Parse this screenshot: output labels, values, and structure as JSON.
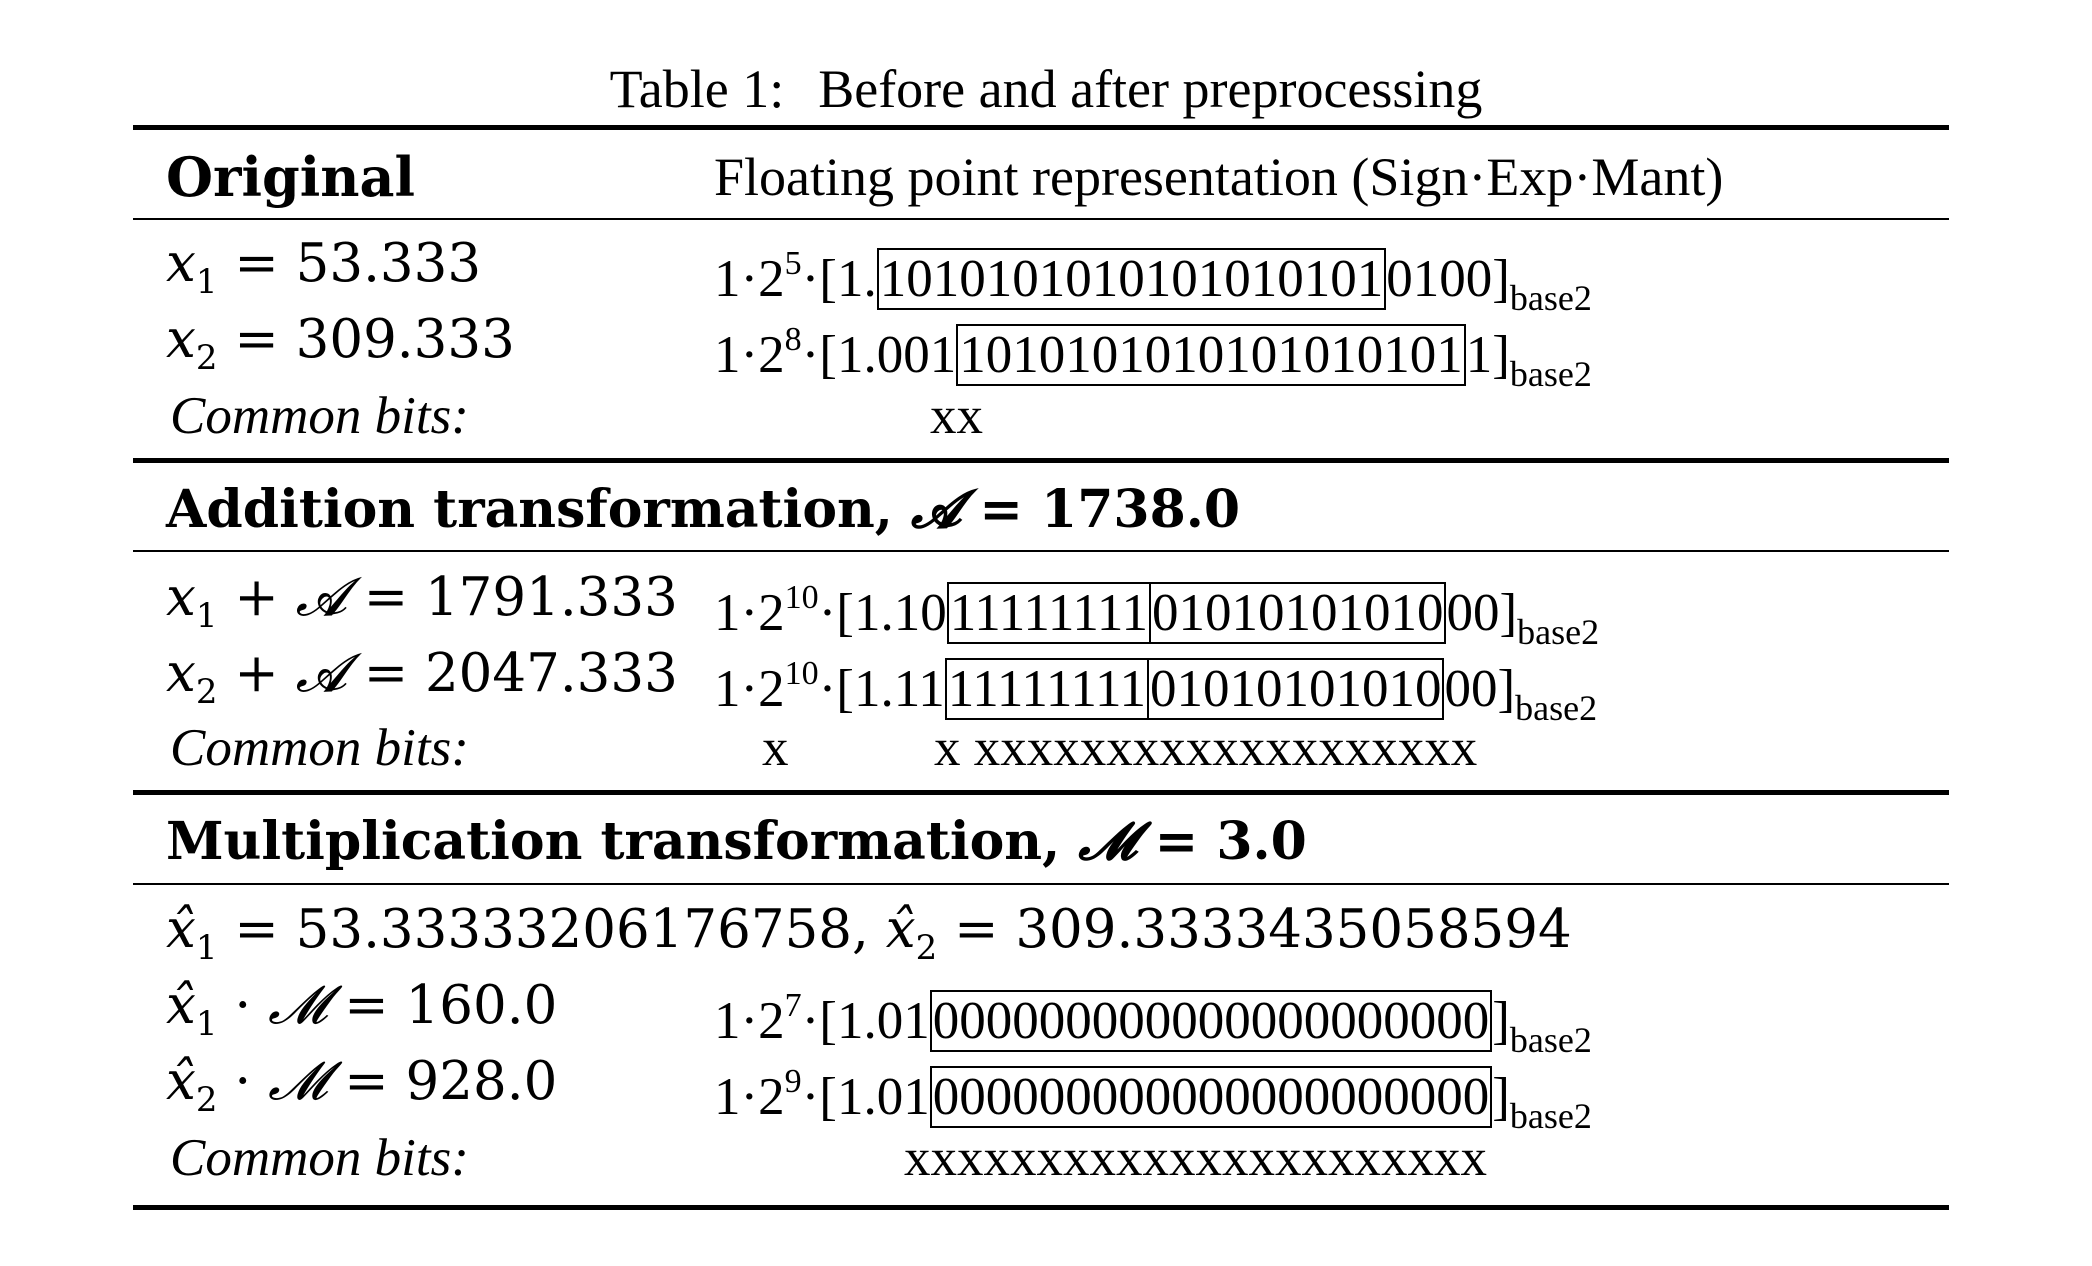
{
  "caption": {
    "label": "Table 1:",
    "title": "Before and after preprocessing"
  },
  "header": {
    "col1": "Original",
    "col2": "Floating point representation (Sign·Exp·Mant)"
  },
  "section_original": {
    "rows": [
      {
        "var": "x",
        "sub": "1",
        "eq": " = 53.333",
        "sign": "1·2",
        "exp": "5",
        "pre": "·[1.",
        "boxed": "1010101010101010101",
        "post": "0100]",
        "base": "base2"
      },
      {
        "var": "x",
        "sub": "2",
        "eq": " = 309.333",
        "sign": "1·2",
        "exp": "8",
        "pre": "·[1.001",
        "boxed": "1010101010101010101",
        "post": "1]",
        "base": "base2"
      }
    ],
    "common_label": "Common bits:",
    "common_marks": "xx"
  },
  "section_addition": {
    "title_text": "Addition transformation, ",
    "title_symbol": "𝓐",
    "title_value": " = 1738.0",
    "rows": [
      {
        "var": "x",
        "sub": "1",
        "plus": " + ",
        "sym": "𝓐",
        "eq": " = 1791.333",
        "sign": "1·2",
        "exp": "10",
        "pre": "·[1.10",
        "boxed1": "11111111",
        "boxed2": "01010101010",
        "post": "00]",
        "base": "base2"
      },
      {
        "var": "x",
        "sub": "2",
        "plus": " + ",
        "sym": "𝓐",
        "eq": " = 2047.333",
        "sign": "1·2",
        "exp": "10",
        "pre": "·[1.11",
        "boxed1": "11111111",
        "boxed2": "01010101010",
        "post": "00]",
        "base": "base2"
      }
    ],
    "common_label": "Common bits:",
    "common_marks_a": "x",
    "common_marks_b": "x xxxxxxxxxxxxxxxxxxx"
  },
  "section_multiplication": {
    "title_text": "Multiplication transformation, ",
    "title_symbol": "𝓜",
    "title_value": " = 3.0",
    "hat_line": {
      "v1": "x̂",
      "s1": "1",
      "e1": " = 53.33333206176758, ",
      "v2": "x̂",
      "s2": "2",
      "e2": " = 309.3333435058594"
    },
    "rows": [
      {
        "var": "x̂",
        "sub": "1",
        "dot": " · ",
        "sym": "𝓜",
        "eq": " = 160.0",
        "sign": "1·2",
        "exp": "7",
        "pre": "·[1.01",
        "boxed": "000000000000000000000",
        "post": "]",
        "base": "base2"
      },
      {
        "var": "x̂",
        "sub": "2",
        "dot": " · ",
        "sym": "𝓜",
        "eq": " = 928.0",
        "sign": "1·2",
        "exp": "9",
        "pre": "·[1.01",
        "boxed": "000000000000000000000",
        "post": "]",
        "base": "base2"
      }
    ],
    "common_label": "Common bits:",
    "common_marks": "xxxxxxxxxxxxxxxxxxxxxx"
  }
}
